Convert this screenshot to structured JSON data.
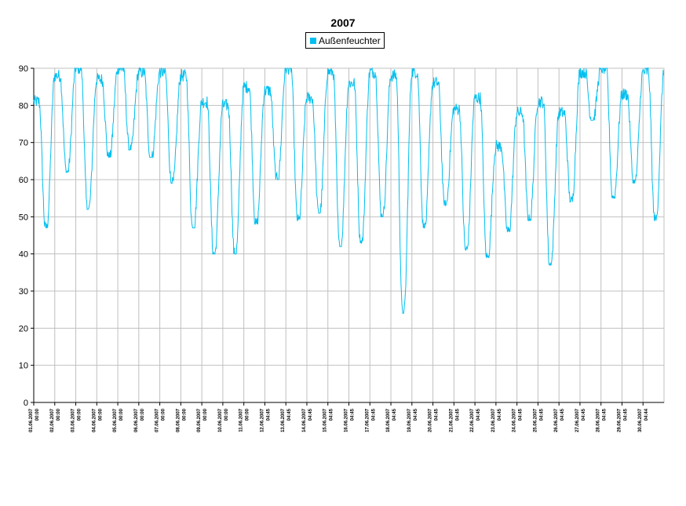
{
  "chart_data": {
    "type": "line",
    "title": "2007",
    "xlabel": "",
    "ylabel": "",
    "ylim": [
      0,
      90
    ],
    "yticks": [
      0,
      10,
      20,
      30,
      40,
      50,
      60,
      70,
      80,
      90
    ],
    "grid": true,
    "legend_position": "top-center",
    "series_color": "#00BFEF",
    "series": [
      {
        "name": "Außenfeuchter",
        "daily": [
          {
            "date": "01.06.2007",
            "max": 81,
            "min": 47
          },
          {
            "date": "02.06.2007",
            "max": 88,
            "min": 62
          },
          {
            "date": "03.06.2007",
            "max": 90,
            "min": 52
          },
          {
            "date": "04.06.2007",
            "max": 87,
            "min": 66
          },
          {
            "date": "05.06.2007",
            "max": 90,
            "min": 68
          },
          {
            "date": "06.06.2007",
            "max": 89,
            "min": 66
          },
          {
            "date": "07.06.2007",
            "max": 89,
            "min": 59
          },
          {
            "date": "08.06.2007",
            "max": 88,
            "min": 47
          },
          {
            "date": "09.06.2007",
            "max": 81,
            "min": 40
          },
          {
            "date": "10.06.2007",
            "max": 80,
            "min": 40
          },
          {
            "date": "11.06.2007",
            "max": 85,
            "min": 48
          },
          {
            "date": "12.06.2007",
            "max": 84,
            "min": 60
          },
          {
            "date": "13.06.2007",
            "max": 90,
            "min": 49
          },
          {
            "date": "14.06.2007",
            "max": 82,
            "min": 51
          },
          {
            "date": "15.06.2007",
            "max": 89,
            "min": 42
          },
          {
            "date": "16.06.2007",
            "max": 86,
            "min": 43
          },
          {
            "date": "17.06.2007",
            "max": 89,
            "min": 50
          },
          {
            "date": "18.06.2007",
            "max": 88,
            "min": 24
          },
          {
            "date": "19.06.2007",
            "max": 89,
            "min": 47
          },
          {
            "date": "20.06.2007",
            "max": 86,
            "min": 53
          },
          {
            "date": "21.06.2007",
            "max": 79,
            "min": 41
          },
          {
            "date": "22.06.2007",
            "max": 82,
            "min": 39
          },
          {
            "date": "23.06.2007",
            "max": 69,
            "min": 46
          },
          {
            "date": "24.06.2007",
            "max": 78,
            "min": 49
          },
          {
            "date": "25.06.2007",
            "max": 81,
            "min": 37
          },
          {
            "date": "26.06.2007",
            "max": 78,
            "min": 54
          },
          {
            "date": "27.06.2007",
            "max": 89,
            "min": 76
          },
          {
            "date": "28.06.2007",
            "max": 90,
            "min": 55
          },
          {
            "date": "29.06.2007",
            "max": 83,
            "min": 59
          },
          {
            "date": "30.06.2007",
            "max": 89,
            "min": 49
          }
        ]
      }
    ],
    "x_tick_labels": [
      {
        "date": "01.06.2007",
        "time": "00:00"
      },
      {
        "date": "02.06.2007",
        "time": "00:00"
      },
      {
        "date": "03.06.2007",
        "time": "00:00"
      },
      {
        "date": "04.06.2007",
        "time": "00:00"
      },
      {
        "date": "05.06.2007",
        "time": "00:00"
      },
      {
        "date": "06.06.2007",
        "time": "00:00"
      },
      {
        "date": "07.06.2007",
        "time": "00:00"
      },
      {
        "date": "08.06.2007",
        "time": "00:00"
      },
      {
        "date": "09.06.2007",
        "time": "00:00"
      },
      {
        "date": "10.06.2007",
        "time": "00:00"
      },
      {
        "date": "11.06.2007",
        "time": "00:00"
      },
      {
        "date": "12.06.2007",
        "time": "04:45"
      },
      {
        "date": "13.06.2007",
        "time": "04:45"
      },
      {
        "date": "14.06.2007",
        "time": "04:45"
      },
      {
        "date": "15.06.2007",
        "time": "04:45"
      },
      {
        "date": "16.06.2007",
        "time": "04:45"
      },
      {
        "date": "17.06.2007",
        "time": "04:45"
      },
      {
        "date": "18.06.2007",
        "time": "04:45"
      },
      {
        "date": "19.06.2007",
        "time": "04:45"
      },
      {
        "date": "20.06.2007",
        "time": "04:45"
      },
      {
        "date": "21.06.2007",
        "time": "04:45"
      },
      {
        "date": "22.06.2007",
        "time": "04:45"
      },
      {
        "date": "23.06.2007",
        "time": "04:45"
      },
      {
        "date": "24.06.2007",
        "time": "04:45"
      },
      {
        "date": "25.06.2007",
        "time": "04:45"
      },
      {
        "date": "26.06.2007",
        "time": "04:45"
      },
      {
        "date": "27.06.2007",
        "time": "04:45"
      },
      {
        "date": "28.06.2007",
        "time": "04:45"
      },
      {
        "date": "29.06.2007",
        "time": "04:45"
      },
      {
        "date": "30.06.2007",
        "time": "04:44"
      }
    ]
  }
}
